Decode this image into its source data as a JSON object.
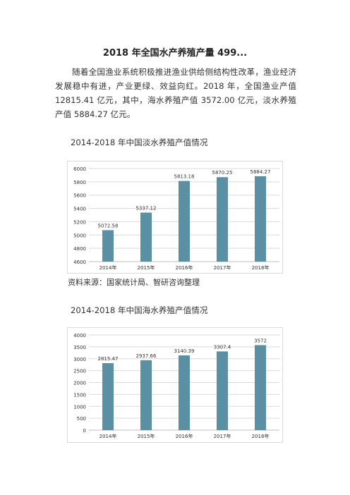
{
  "title": "2018 年全国水产养殖产量 499...",
  "paragraph": "随着全国渔业系统积极推进渔业供给侧结构性改革，渔业经济发展稳中有进，产业更绿、效益向红。2018 年，全国渔业产值 12815.41 亿元，其中，海水养殖产值 3572.00 亿元，淡水养殖产值 5884.27 亿元。",
  "section1_title": "2014-2018 年中国淡水养殖产值情况",
  "source": "资料来源：国家统计局、智研咨询整理",
  "section2_title": "2014-2018 年中国海水养殖产值情况",
  "colors": {
    "bar": "#5b8fa3",
    "grid": "#d9d9d9",
    "axis": "#bfbfbf"
  },
  "chart_data": [
    {
      "type": "bar",
      "categories": [
        "2014年",
        "2015年",
        "2016年",
        "2017年",
        "2018年"
      ],
      "values": [
        5072.58,
        5337.12,
        5813.18,
        5870.25,
        5884.27
      ],
      "labels": [
        "5072.58",
        "5337.12",
        "5813.18",
        "5870.25",
        "5884.27"
      ],
      "ylim": [
        4600,
        6000
      ],
      "yticks": [
        4600,
        4800,
        5000,
        5200,
        5400,
        5600,
        5800,
        6000
      ],
      "grid": true
    },
    {
      "type": "bar",
      "categories": [
        "2014年",
        "2015年",
        "2016年",
        "2017年",
        "2018年"
      ],
      "values": [
        2815.47,
        2937.66,
        3140.39,
        3307.4,
        3572
      ],
      "labels": [
        "2815.47",
        "2937.66",
        "3140.39",
        "3307.4",
        "3572"
      ],
      "ylim": [
        0,
        4000
      ],
      "yticks": [
        0,
        500,
        1000,
        1500,
        2000,
        2500,
        3000,
        3500,
        4000
      ],
      "grid": true
    }
  ]
}
